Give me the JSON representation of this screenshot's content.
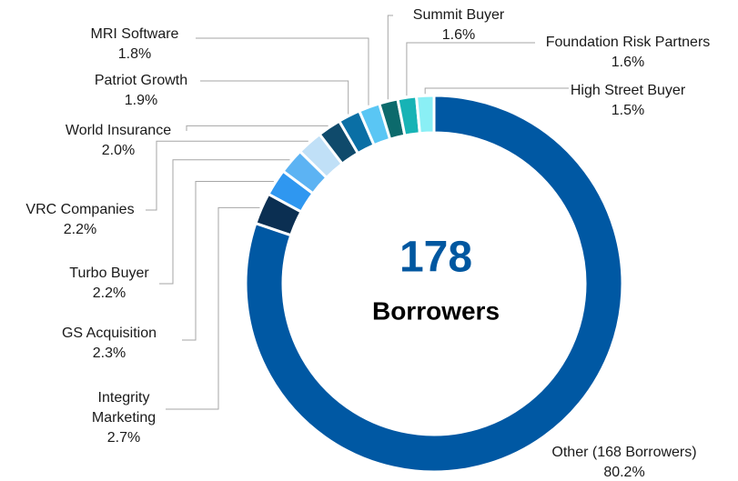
{
  "chart_data": {
    "type": "donut",
    "center_text": "178",
    "center_subtext": "Borrowers",
    "categories": [
      "Other (168 Borrowers)",
      "Integrity Marketing",
      "GS Acquisition",
      "Turbo Buyer",
      "VRC Companies",
      "World Insurance",
      "Patriot Growth",
      "MRI Software",
      "Summit Buyer",
      "Foundation Risk Partners",
      "High Street Buyer"
    ],
    "values": [
      80.2,
      2.7,
      2.3,
      2.2,
      2.2,
      2.0,
      1.9,
      1.8,
      1.6,
      1.6,
      1.5
    ],
    "value_labels": [
      "80.2%",
      "2.7%",
      "2.3%",
      "2.2%",
      "2.2%",
      "2.0%",
      "1.9%",
      "1.8%",
      "1.6%",
      "1.6%",
      "1.5%"
    ],
    "colors": [
      "#0058a3",
      "#0b2f52",
      "#2f97f0",
      "#5cb3f3",
      "#c0e0f7",
      "#0f4a6b",
      "#0a6fa5",
      "#5ac6f4",
      "#0c6a6c",
      "#17b3b5",
      "#8aeff5"
    ]
  }
}
